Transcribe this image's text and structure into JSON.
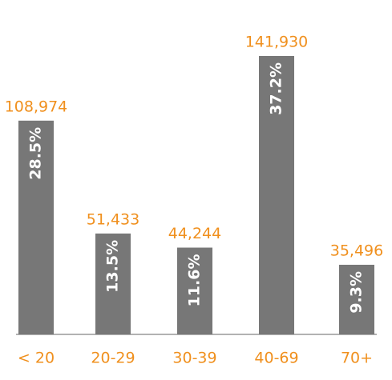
{
  "chart_data": {
    "type": "bar",
    "categories": [
      "< 20",
      "20-29",
      "30-39",
      "40-69",
      "70+"
    ],
    "values": [
      108974,
      51433,
      44244,
      141930,
      35496
    ],
    "value_labels": [
      "108,974",
      "51,433",
      "44,244",
      "141,930",
      "35,496"
    ],
    "shares": [
      28.5,
      13.5,
      11.6,
      37.2,
      9.3
    ],
    "share_labels": [
      "28.5%",
      "13.5%",
      "11.6%",
      "37.2%",
      "9.3%"
    ],
    "color": "#777777",
    "label_color": "#f0901e"
  }
}
